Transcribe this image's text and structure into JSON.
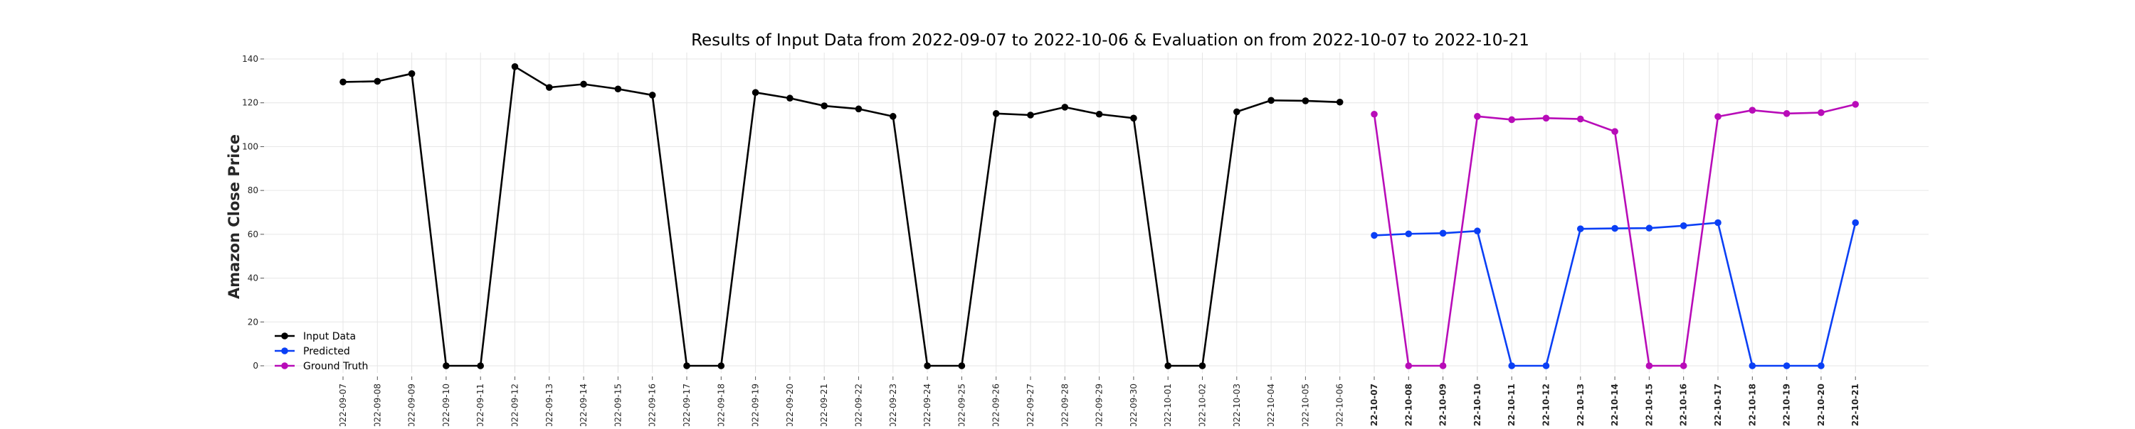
{
  "chart_data": {
    "type": "line",
    "title": "Results of Input Data from 2022-09-07 to 2022-10-06 & Evaluation on from 2022-10-07 to 2022-10-21",
    "xlabel": "",
    "ylabel": "Amazon Close Price",
    "ylim": [
      0,
      140
    ],
    "yticks": [
      0,
      20,
      40,
      60,
      80,
      100,
      120,
      140
    ],
    "grid": true,
    "legend_position": "lower-left",
    "x": [
      "2022-09-07",
      "2022-09-08",
      "2022-09-09",
      "2022-09-10",
      "2022-09-11",
      "2022-09-12",
      "2022-09-13",
      "2022-09-14",
      "2022-09-15",
      "2022-09-16",
      "2022-09-17",
      "2022-09-18",
      "2022-09-19",
      "2022-09-20",
      "2022-09-21",
      "2022-09-22",
      "2022-09-23",
      "2022-09-24",
      "2022-09-25",
      "2022-09-26",
      "2022-09-27",
      "2022-09-28",
      "2022-09-29",
      "2022-09-30",
      "2022-10-01",
      "2022-10-02",
      "2022-10-03",
      "2022-10-04",
      "2022-10-05",
      "2022-10-06",
      "2022-10-07",
      "2022-10-08",
      "2022-10-09",
      "2022-10-10",
      "2022-10-11",
      "2022-10-12",
      "2022-10-13",
      "2022-10-14",
      "2022-10-15",
      "2022-10-16",
      "2022-10-17",
      "2022-10-18",
      "2022-10-19",
      "2022-10-20",
      "2022-10-21"
    ],
    "x_tick_labels": [
      "022-09-07",
      "022-09-08",
      "022-09-09",
      "022-09-10",
      "022-09-11",
      "022-09-12",
      "022-09-13",
      "022-09-14",
      "022-09-15",
      "022-09-16",
      "022-09-17",
      "022-09-18",
      "022-09-19",
      "022-09-20",
      "022-09-21",
      "022-09-22",
      "022-09-23",
      "022-09-24",
      "022-09-25",
      "022-09-26",
      "022-09-27",
      "022-09-28",
      "022-09-29",
      "022-09-30",
      "022-10-01",
      "022-10-02",
      "022-10-03",
      "022-10-04",
      "022-10-05",
      "022-10-06",
      "022-10-07",
      "022-10-08",
      "022-10-09",
      "022-10-10",
      "022-10-11",
      "022-10-12",
      "022-10-13",
      "022-10-14",
      "022-10-15",
      "022-10-16",
      "022-10-17",
      "022-10-18",
      "022-10-19",
      "022-10-20",
      "022-10-21"
    ],
    "bold_ticks_from": "2022-10-07",
    "series": [
      {
        "name": "Input Data",
        "color": "#000000",
        "x": [
          "2022-09-07",
          "2022-09-08",
          "2022-09-09",
          "2022-09-10",
          "2022-09-11",
          "2022-09-12",
          "2022-09-13",
          "2022-09-14",
          "2022-09-15",
          "2022-09-16",
          "2022-09-17",
          "2022-09-18",
          "2022-09-19",
          "2022-09-20",
          "2022-09-21",
          "2022-09-22",
          "2022-09-23",
          "2022-09-24",
          "2022-09-25",
          "2022-09-26",
          "2022-09-27",
          "2022-09-28",
          "2022-09-29",
          "2022-09-30",
          "2022-10-01",
          "2022-10-02",
          "2022-10-03",
          "2022-10-04",
          "2022-10-05",
          "2022-10-06"
        ],
        "values": [
          129.5,
          129.8,
          133.3,
          0,
          0,
          136.5,
          127.0,
          128.5,
          126.3,
          123.5,
          0,
          0,
          124.7,
          122.1,
          118.6,
          117.2,
          113.8,
          0,
          0,
          115.1,
          114.4,
          118.0,
          114.8,
          113.0,
          0,
          0,
          115.9,
          121.1,
          120.9,
          120.3
        ]
      },
      {
        "name": "Predicted",
        "color": "#0a3ff5",
        "x": [
          "2022-10-07",
          "2022-10-08",
          "2022-10-09",
          "2022-10-10",
          "2022-10-11",
          "2022-10-12",
          "2022-10-13",
          "2022-10-14",
          "2022-10-15",
          "2022-10-16",
          "2022-10-17",
          "2022-10-18",
          "2022-10-19",
          "2022-10-20",
          "2022-10-21"
        ],
        "values": [
          59.5,
          60.2,
          60.5,
          61.5,
          0,
          0,
          62.5,
          62.7,
          62.8,
          63.9,
          65.3,
          0,
          0,
          0,
          65.3
        ]
      },
      {
        "name": "Ground Truth",
        "color": "#b80cb8",
        "x": [
          "2022-10-07",
          "2022-10-08",
          "2022-10-09",
          "2022-10-10",
          "2022-10-11",
          "2022-10-12",
          "2022-10-13",
          "2022-10-14",
          "2022-10-15",
          "2022-10-16",
          "2022-10-17",
          "2022-10-18",
          "2022-10-19",
          "2022-10-20",
          "2022-10-21"
        ],
        "values": [
          114.8,
          0,
          0,
          113.8,
          112.3,
          113.0,
          112.6,
          106.9,
          0,
          0,
          113.7,
          116.6,
          115.1,
          115.5,
          119.3
        ]
      }
    ]
  }
}
